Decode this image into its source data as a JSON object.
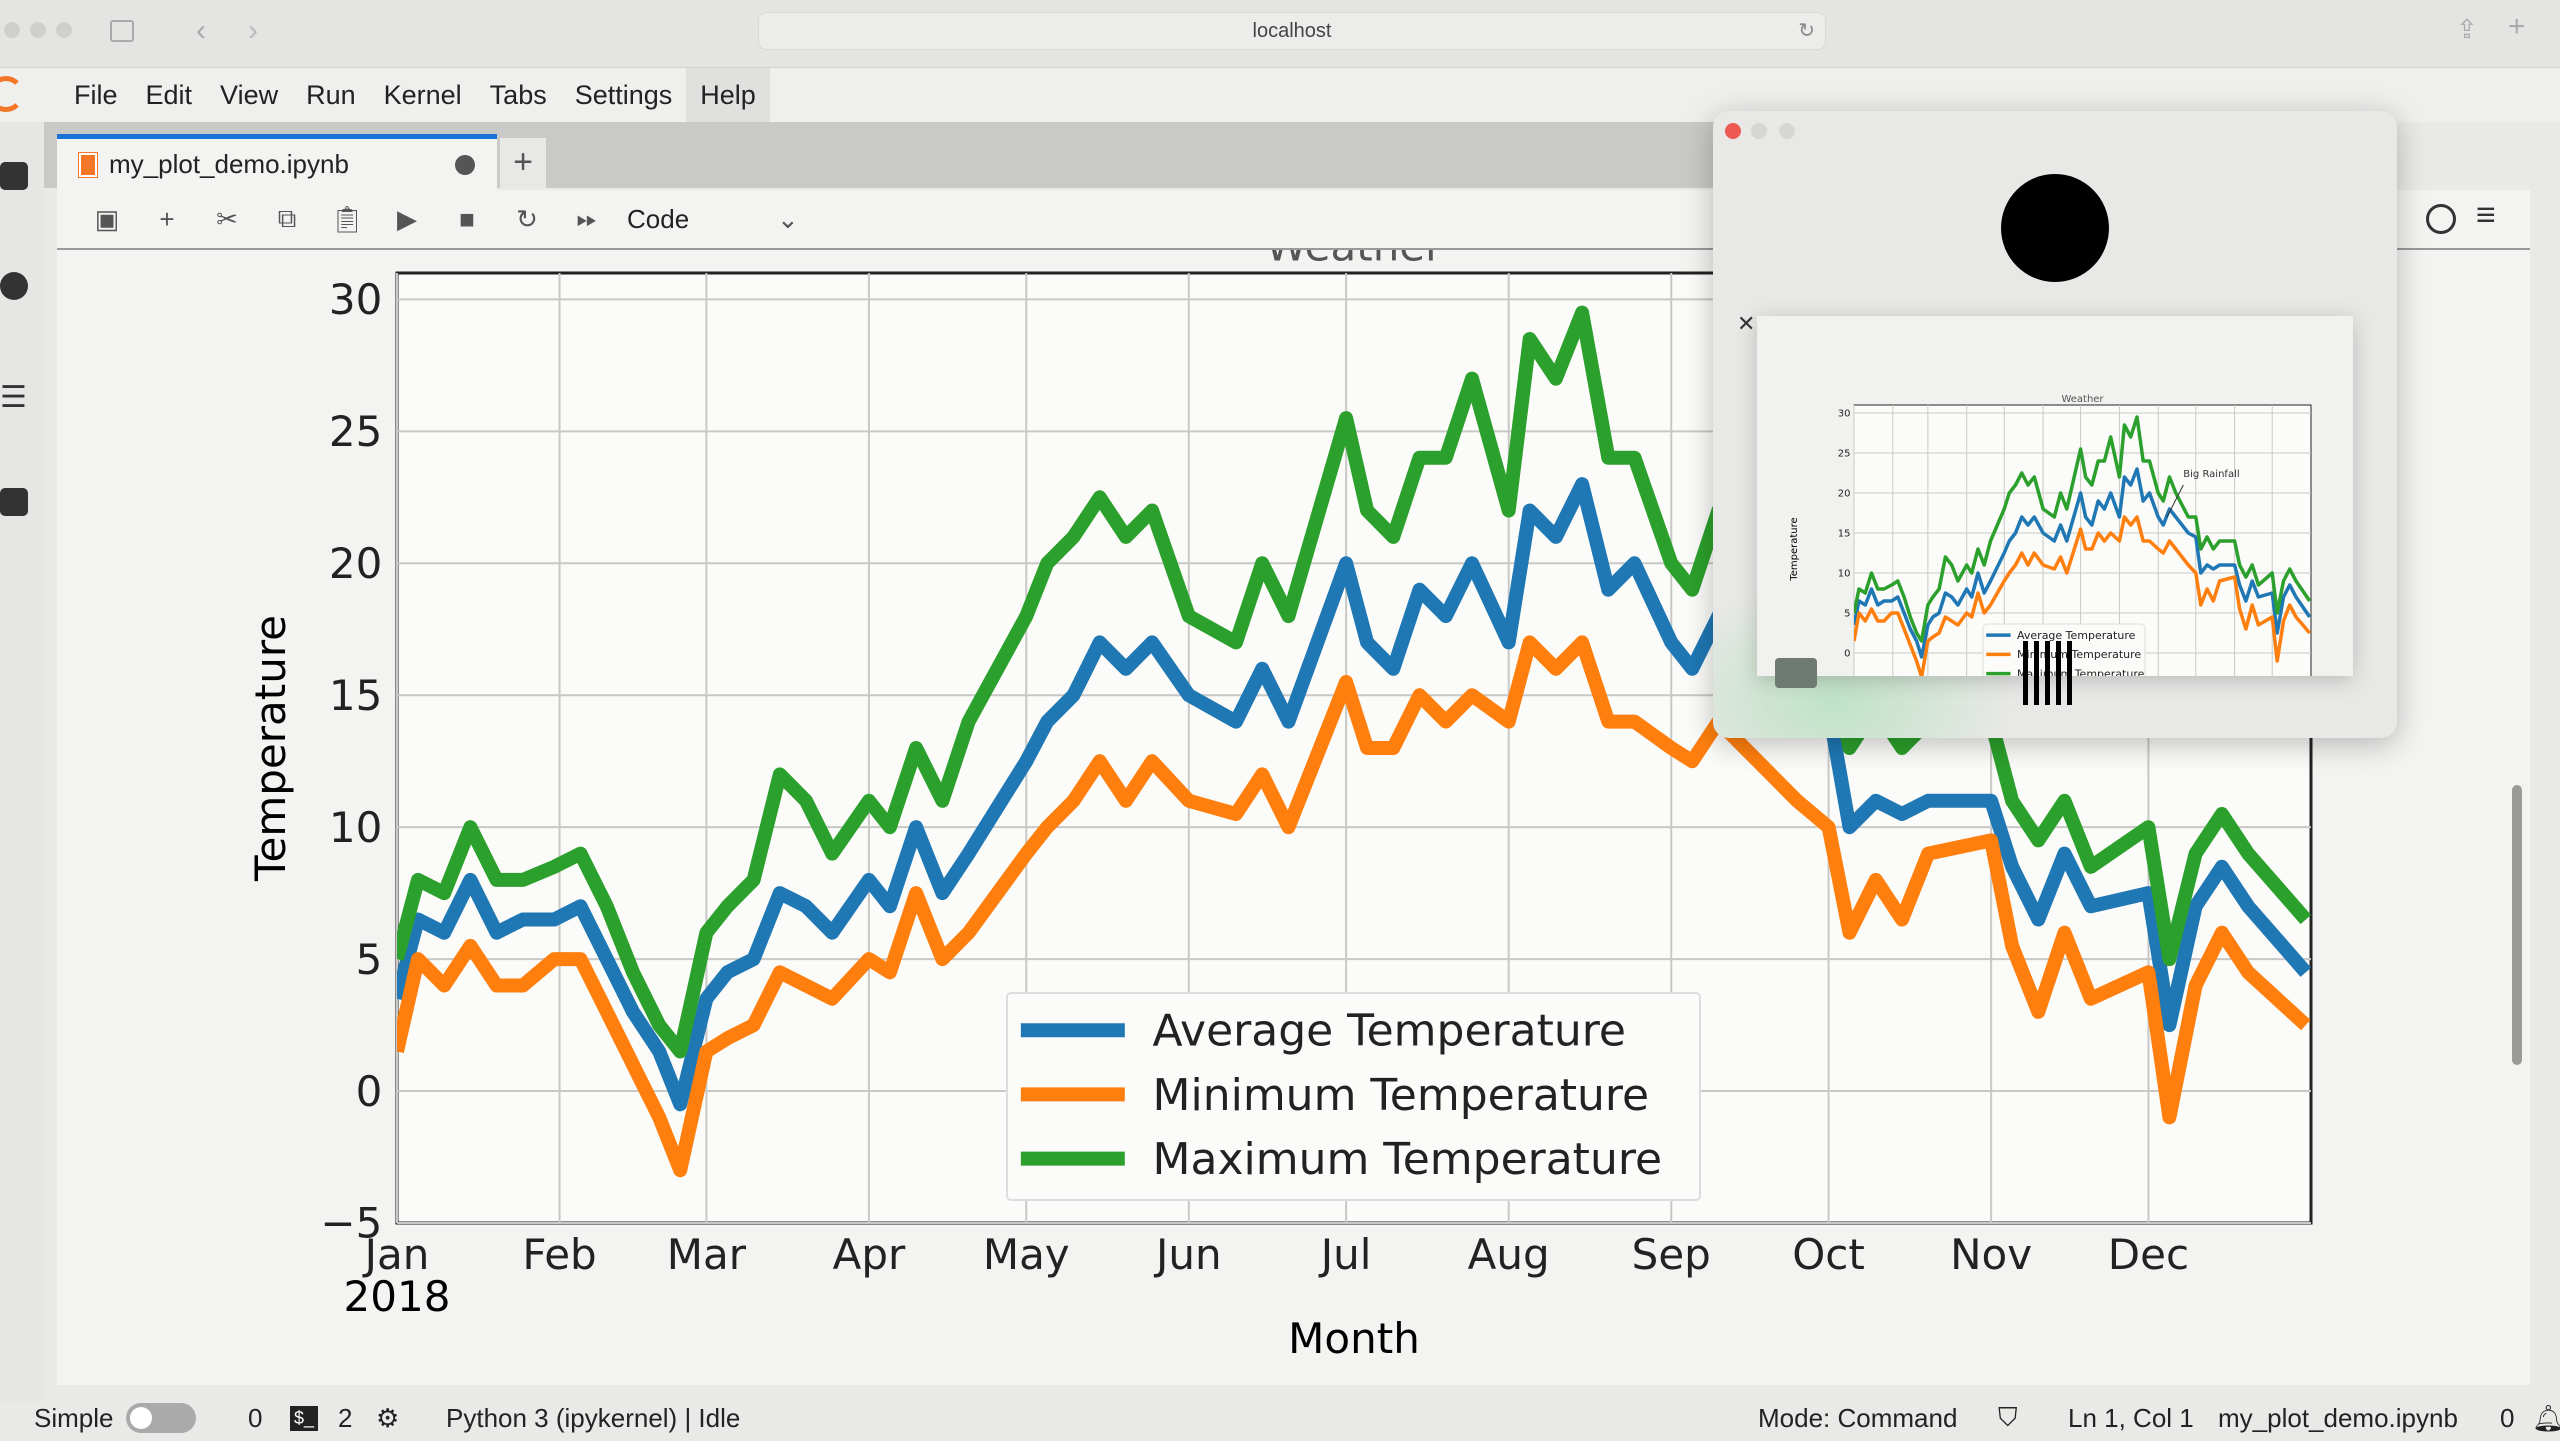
{
  "browser": {
    "url": "localhost"
  },
  "menu": [
    "File",
    "Edit",
    "View",
    "Run",
    "Kernel",
    "Tabs",
    "Settings",
    "Help"
  ],
  "tab": {
    "name": "my_plot_demo.ipynb",
    "add": "+"
  },
  "toolbar": {
    "cell_type": "Code"
  },
  "status": {
    "mode_label": "Simple",
    "terminals": "0",
    "kernels": "2",
    "kernel": "Python 3 (ipykernel) | Idle",
    "mode": "Mode: Command",
    "position": "Ln 1, Col 1",
    "file": "my_plot_demo.ipynb",
    "notifications": "0"
  },
  "popup": {
    "annotation": "Big Rainfall"
  },
  "colors": {
    "avg": "#1f77b4",
    "min": "#ff7f0e",
    "max": "#2ca02c"
  },
  "chart_data": {
    "type": "line",
    "title": "Weather",
    "xlabel": "Month",
    "ylabel": "Temperature",
    "ylim": [
      -5,
      31
    ],
    "year_label": "2018",
    "xticks": [
      "Jan",
      "Feb",
      "Mar",
      "Apr",
      "May",
      "Jun",
      "Jul",
      "Aug",
      "Sep",
      "Oct",
      "Nov",
      "Dec"
    ],
    "yticks": [
      "30",
      "25",
      "20",
      "15",
      "10",
      "5",
      "0",
      "−5"
    ],
    "grid": true,
    "legend": "lower-center",
    "x_day_of_year": [
      0,
      4,
      9,
      14,
      19,
      24,
      30,
      35,
      40,
      45,
      50,
      54,
      59,
      63,
      68,
      73,
      78,
      83,
      90,
      94,
      99,
      104,
      109,
      120,
      124,
      129,
      134,
      139,
      144,
      151,
      160,
      165,
      170,
      181,
      185,
      190,
      195,
      200,
      205,
      212,
      216,
      221,
      226,
      231,
      236,
      243,
      247,
      252,
      257,
      267,
      273,
      277,
      282,
      287,
      292,
      304,
      308,
      313,
      318,
      323,
      334,
      338,
      343,
      348,
      353,
      364
    ],
    "series": [
      {
        "name": "Average Temperature",
        "key": "avg",
        "values": [
          3.5,
          6.5,
          6,
          8,
          6,
          6.5,
          6.5,
          7,
          5,
          3,
          1.5,
          -0.5,
          3.5,
          4.5,
          5,
          7.5,
          7,
          6,
          8,
          7,
          10,
          7.5,
          9,
          12.5,
          14,
          15,
          17,
          16,
          17,
          15,
          14,
          16,
          14,
          20,
          17,
          16,
          19,
          18,
          20,
          17,
          22,
          21,
          23,
          19,
          20,
          17,
          16,
          18,
          17,
          15,
          14.5,
          10,
          11,
          10.5,
          11,
          11,
          8.5,
          6.5,
          9,
          7,
          7.5,
          2.5,
          7,
          8.5,
          7,
          4.5
        ]
      },
      {
        "name": "Minimum Temperature",
        "key": "min",
        "values": [
          1.5,
          5,
          4,
          5.5,
          4,
          4,
          5,
          5,
          3,
          1,
          -1,
          -3,
          1.5,
          2,
          2.5,
          4.5,
          4,
          3.5,
          5,
          4.5,
          7.5,
          5,
          6,
          9,
          10,
          11,
          12.5,
          11,
          12.5,
          11,
          10.5,
          12,
          10,
          15.5,
          13,
          13,
          15,
          14,
          15,
          14,
          17,
          16,
          17,
          14,
          14,
          13,
          12.5,
          14,
          13,
          11,
          10,
          6,
          8,
          6.5,
          9,
          9.5,
          5.5,
          3,
          6,
          3.5,
          4.5,
          -1,
          4,
          6,
          4.5,
          2.5
        ]
      },
      {
        "name": "Maximum Temperature",
        "key": "max",
        "values": [
          5,
          8,
          7.5,
          10,
          8,
          8,
          8.5,
          9,
          7,
          4.5,
          2.5,
          1.5,
          6,
          7,
          8,
          12,
          11,
          9,
          11,
          10,
          13,
          11,
          14,
          18,
          20,
          21,
          22.5,
          21,
          22,
          18,
          17,
          20,
          18,
          25.5,
          22,
          21,
          24,
          24,
          27,
          22,
          28.5,
          27,
          29.5,
          24,
          24,
          20,
          19,
          22,
          20,
          17,
          17,
          13,
          14.5,
          13,
          14,
          14,
          11,
          9.5,
          11,
          8.5,
          10,
          5,
          9,
          10.5,
          9,
          6.5
        ]
      }
    ]
  }
}
